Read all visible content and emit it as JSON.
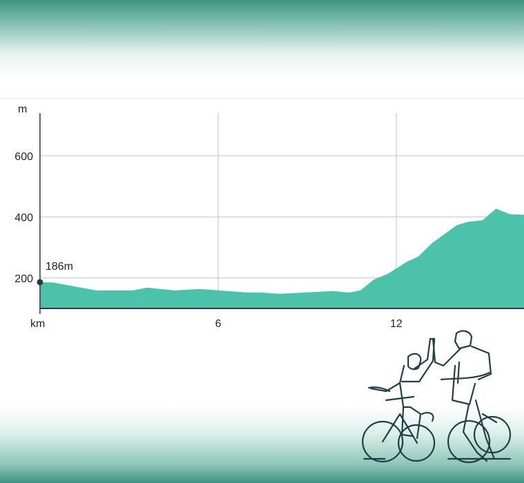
{
  "chart_data": {
    "type": "area",
    "title": "",
    "xlabel": "km",
    "ylabel": "m",
    "xlim": [
      0,
      16.3
    ],
    "ylim": [
      100,
      740
    ],
    "x_ticks": [
      6,
      12
    ],
    "x_tick_labels": [
      "6",
      "12"
    ],
    "y_ticks": [
      200,
      400,
      600
    ],
    "y_tick_labels": [
      "200",
      "400",
      "600"
    ],
    "grid": true,
    "start_label": "186m",
    "fill_color": "#4cc2aa",
    "points": [
      [
        0,
        186
      ],
      [
        0.44,
        185
      ],
      [
        1.9,
        159
      ],
      [
        3.13,
        159
      ],
      [
        3.6,
        168
      ],
      [
        4.52,
        159
      ],
      [
        5.38,
        164
      ],
      [
        7.0,
        152
      ],
      [
        7.47,
        152
      ],
      [
        8.1,
        148
      ],
      [
        9.86,
        157
      ],
      [
        10.42,
        152
      ],
      [
        10.79,
        159
      ],
      [
        11.25,
        195
      ],
      [
        11.72,
        214
      ],
      [
        12.34,
        252
      ],
      [
        12.74,
        270
      ],
      [
        13.2,
        314
      ],
      [
        14.04,
        373
      ],
      [
        14.43,
        384
      ],
      [
        14.9,
        389
      ],
      [
        15.36,
        427
      ],
      [
        15.82,
        409
      ],
      [
        16.3,
        407
      ]
    ]
  }
}
